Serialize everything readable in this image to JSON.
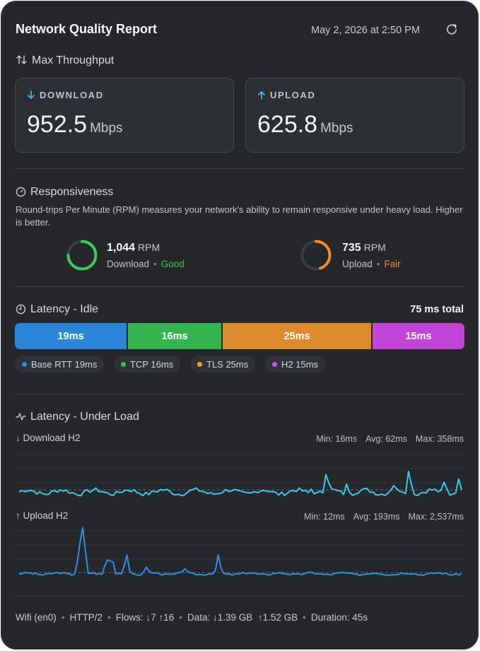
{
  "header": {
    "title": "Network Quality Report",
    "date": "May 2, 2026 at 2:50 PM"
  },
  "throughput": {
    "section_title": "Max Throughput",
    "download": {
      "label": "DOWNLOAD",
      "value": "952.5",
      "unit": "Mbps"
    },
    "upload": {
      "label": "UPLOAD",
      "value": "625.8",
      "unit": "Mbps"
    }
  },
  "responsiveness": {
    "section_title": "Responsiveness",
    "description": "Round-trips Per Minute (RPM) measures your network's ability to remain responsive under heavy load. Higher is better.",
    "download": {
      "value": "1,044",
      "unit": "RPM",
      "label": "Download",
      "rating": "Good",
      "gauge_fraction": 0.75,
      "color": "#3ccb5a"
    },
    "upload": {
      "value": "735",
      "unit": "RPM",
      "label": "Upload",
      "rating": "Fair",
      "gauge_fraction": 0.45,
      "color": "#f08c2e"
    }
  },
  "latency_idle": {
    "section_title": "Latency - Idle",
    "total": "75 ms total",
    "segments": [
      {
        "label": "19ms",
        "ms": 19,
        "color": "#2a86d9"
      },
      {
        "label": "16ms",
        "ms": 16,
        "color": "#35b552"
      },
      {
        "label": "25ms",
        "ms": 25,
        "color": "#dd8a2c"
      },
      {
        "label": "15ms",
        "ms": 15,
        "color": "#c245d8"
      }
    ],
    "legend": [
      {
        "label": "Base RTT 19ms",
        "color": "#2a8ef0"
      },
      {
        "label": "TCP 16ms",
        "color": "#35c257"
      },
      {
        "label": "TLS 25ms",
        "color": "#f0962e"
      },
      {
        "label": "H2 15ms",
        "color": "#d050e8"
      }
    ]
  },
  "latency_load": {
    "section_title": "Latency - Under Load",
    "download": {
      "label": "Download H2",
      "min": "Min: 16ms",
      "avg": "Avg: 62ms",
      "max": "Max: 358ms",
      "color": "#3fc6e8"
    },
    "upload": {
      "label": "Upload H2",
      "min": "Min: 12ms",
      "avg": "Avg: 193ms",
      "max": "Max: 2,537ms",
      "color": "#2f8ee8"
    }
  },
  "footer": {
    "items": [
      "Wifi (en0)",
      "HTTP/2",
      "Flows: ↓7 ↑16",
      "Data: ↓1.39 GB  ↑1.52 GB",
      "Duration: 45s"
    ]
  }
}
